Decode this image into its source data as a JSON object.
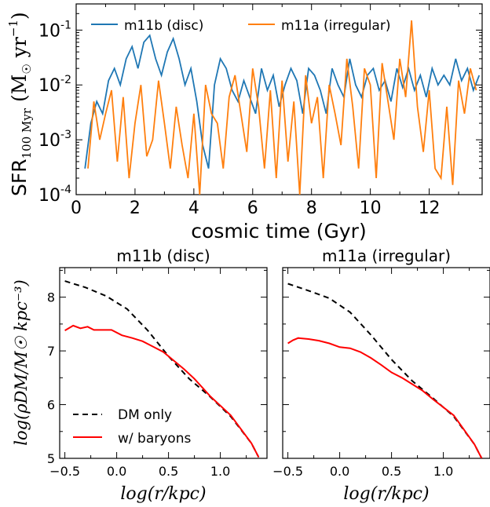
{
  "chart_data": [
    {
      "type": "line",
      "xlabel": "cosmic time (Gyr)",
      "ylabel": "SFR",
      "ylabel_sub": "100 Myr",
      "ylabel_units": "(M☉ yr⁻¹)",
      "ylabel_unit_base": "(M",
      "ylabel_unit_sun": "☉",
      "ylabel_unit_yr": " yr",
      "ylabel_unit_exp": "−1",
      "ylabel_unit_close": ")",
      "xlim": [
        0,
        13.8
      ],
      "ylim": [
        0.0001,
        0.3
      ],
      "yscale": "log",
      "x_ticks": [
        "0",
        "2",
        "4",
        "6",
        "8",
        "10",
        "12"
      ],
      "y_ticks": [
        {
          "base": "10",
          "exp": "-4"
        },
        {
          "base": "10",
          "exp": "-3"
        },
        {
          "base": "10",
          "exp": "-2"
        },
        {
          "base": "10",
          "exp": "-1"
        }
      ],
      "legend": "top",
      "series": [
        {
          "name": "m11b (disc)",
          "color": "#1f77b4",
          "x": [
            0.3,
            0.5,
            0.7,
            0.9,
            1.1,
            1.3,
            1.5,
            1.7,
            1.9,
            2.1,
            2.3,
            2.5,
            2.7,
            2.9,
            3.1,
            3.3,
            3.5,
            3.7,
            3.9,
            4.1,
            4.3,
            4.5,
            4.7,
            4.9,
            5.1,
            5.3,
            5.5,
            5.7,
            5.9,
            6.1,
            6.3,
            6.5,
            6.7,
            6.9,
            7.1,
            7.3,
            7.5,
            7.7,
            7.9,
            8.1,
            8.3,
            8.5,
            8.7,
            8.9,
            9.1,
            9.3,
            9.5,
            9.7,
            9.9,
            10.1,
            10.3,
            10.5,
            10.7,
            10.9,
            11.1,
            11.3,
            11.5,
            11.7,
            11.9,
            12.1,
            12.3,
            12.5,
            12.7,
            12.9,
            13.1,
            13.3,
            13.5,
            13.7
          ],
          "y": [
            0.0003,
            0.002,
            0.005,
            0.003,
            0.012,
            0.02,
            0.01,
            0.03,
            0.05,
            0.02,
            0.06,
            0.08,
            0.03,
            0.015,
            0.04,
            0.07,
            0.03,
            0.01,
            0.02,
            0.005,
            0.0008,
            0.0003,
            0.01,
            0.03,
            0.02,
            0.008,
            0.005,
            0.012,
            0.006,
            0.003,
            0.02,
            0.008,
            0.015,
            0.004,
            0.01,
            0.02,
            0.012,
            0.003,
            0.02,
            0.015,
            0.008,
            0.003,
            0.02,
            0.01,
            0.006,
            0.03,
            0.01,
            0.006,
            0.015,
            0.02,
            0.008,
            0.012,
            0.005,
            0.02,
            0.009,
            0.02,
            0.008,
            0.015,
            0.006,
            0.02,
            0.01,
            0.015,
            0.01,
            0.03,
            0.012,
            0.02,
            0.008,
            0.015
          ]
        },
        {
          "name": "m11a (irregular)",
          "color": "#ff7f0e",
          "x": [
            0.4,
            0.6,
            0.8,
            1.0,
            1.2,
            1.4,
            1.6,
            1.8,
            2.0,
            2.2,
            2.4,
            2.6,
            2.8,
            3.0,
            3.2,
            3.4,
            3.6,
            3.8,
            4.0,
            4.2,
            4.4,
            4.6,
            4.8,
            5.0,
            5.2,
            5.4,
            5.6,
            5.8,
            6.0,
            6.2,
            6.4,
            6.6,
            6.8,
            7.0,
            7.2,
            7.4,
            7.6,
            7.8,
            8.0,
            8.2,
            8.4,
            8.6,
            8.8,
            9.0,
            9.2,
            9.4,
            9.6,
            9.8,
            10.0,
            10.2,
            10.4,
            10.6,
            10.8,
            11.0,
            11.2,
            11.4,
            11.6,
            11.8,
            12.0,
            12.2,
            12.4,
            12.6,
            12.8,
            13.0,
            13.2,
            13.4,
            13.6
          ],
          "y": [
            0.0003,
            0.005,
            0.001,
            0.003,
            0.008,
            0.0004,
            0.006,
            0.0002,
            0.002,
            0.01,
            0.0005,
            0.001,
            0.012,
            0.002,
            0.0003,
            0.004,
            0.0008,
            0.0002,
            0.003,
            0.0001,
            0.01,
            0.003,
            0.002,
            0.0003,
            0.006,
            0.015,
            0.003,
            0.0006,
            0.02,
            0.004,
            0.0003,
            0.008,
            0.0002,
            0.012,
            0.0004,
            0.005,
            0.0001,
            0.015,
            0.002,
            0.006,
            0.0002,
            0.01,
            0.003,
            0.0008,
            0.03,
            0.004,
            0.0003,
            0.02,
            0.01,
            0.0002,
            0.025,
            0.005,
            0.001,
            0.03,
            0.006,
            0.15,
            0.004,
            0.0006,
            0.008,
            0.0003,
            0.0002,
            0.004,
            0.00015,
            0.012,
            0.003,
            0.02,
            0.008
          ]
        }
      ]
    },
    {
      "type": "line",
      "title": "m11b (disc)",
      "xlabel": "log(r/kpc)",
      "ylabel": "log(ρDM/M☉ kpc⁻³)",
      "xlim": [
        -0.55,
        1.45
      ],
      "ylim": [
        5,
        8.55
      ],
      "x_ticks": [
        "−0.5",
        "0.0",
        "0.5",
        "1.0"
      ],
      "y_ticks": [
        "5",
        "6",
        "7",
        "8"
      ],
      "legend": "lower-left",
      "series": [
        {
          "name": "DM only",
          "color": "#000000",
          "dashed": true,
          "x": [
            -0.5,
            -0.3,
            -0.1,
            0.1,
            0.3,
            0.5,
            0.7,
            0.9,
            1.1,
            1.3,
            1.37
          ],
          "y": [
            8.3,
            8.18,
            8.02,
            7.78,
            7.38,
            6.9,
            6.48,
            6.15,
            5.78,
            5.28,
            5.02
          ]
        },
        {
          "name": "w/ baryons",
          "color": "#ff0000",
          "x": [
            -0.5,
            -0.42,
            -0.35,
            -0.28,
            -0.22,
            -0.15,
            -0.05,
            0.05,
            0.15,
            0.25,
            0.35,
            0.45,
            0.55,
            0.65,
            0.75,
            0.9,
            1.1,
            1.3,
            1.37
          ],
          "y": [
            7.38,
            7.47,
            7.42,
            7.45,
            7.39,
            7.39,
            7.39,
            7.29,
            7.24,
            7.18,
            7.08,
            6.98,
            6.82,
            6.66,
            6.48,
            6.16,
            5.8,
            5.28,
            5.02
          ]
        }
      ]
    },
    {
      "type": "line",
      "title": "m11a (irregular)",
      "xlabel": "log(r/kpc)",
      "xlim": [
        -0.55,
        1.45
      ],
      "ylim": [
        5,
        8.55
      ],
      "x_ticks": [
        "−0.5",
        "0.0",
        "0.5",
        "1.0"
      ],
      "series": [
        {
          "name": "DM only",
          "color": "#000000",
          "dashed": true,
          "x": [
            -0.5,
            -0.3,
            -0.1,
            0.1,
            0.3,
            0.5,
            0.7,
            0.9,
            1.1,
            1.3,
            1.37
          ],
          "y": [
            8.25,
            8.12,
            7.98,
            7.72,
            7.3,
            6.84,
            6.44,
            6.12,
            5.78,
            5.26,
            5.0
          ]
        },
        {
          "name": "w/ baryons",
          "color": "#ff0000",
          "x": [
            -0.5,
            -0.45,
            -0.4,
            -0.3,
            -0.2,
            -0.1,
            0.0,
            0.1,
            0.2,
            0.3,
            0.4,
            0.5,
            0.6,
            0.7,
            0.8,
            0.9,
            1.1,
            1.3,
            1.37
          ],
          "y": [
            7.14,
            7.2,
            7.24,
            7.22,
            7.19,
            7.14,
            7.07,
            7.05,
            6.98,
            6.87,
            6.74,
            6.6,
            6.5,
            6.38,
            6.26,
            6.1,
            5.8,
            5.26,
            5.0
          ]
        }
      ]
    }
  ]
}
